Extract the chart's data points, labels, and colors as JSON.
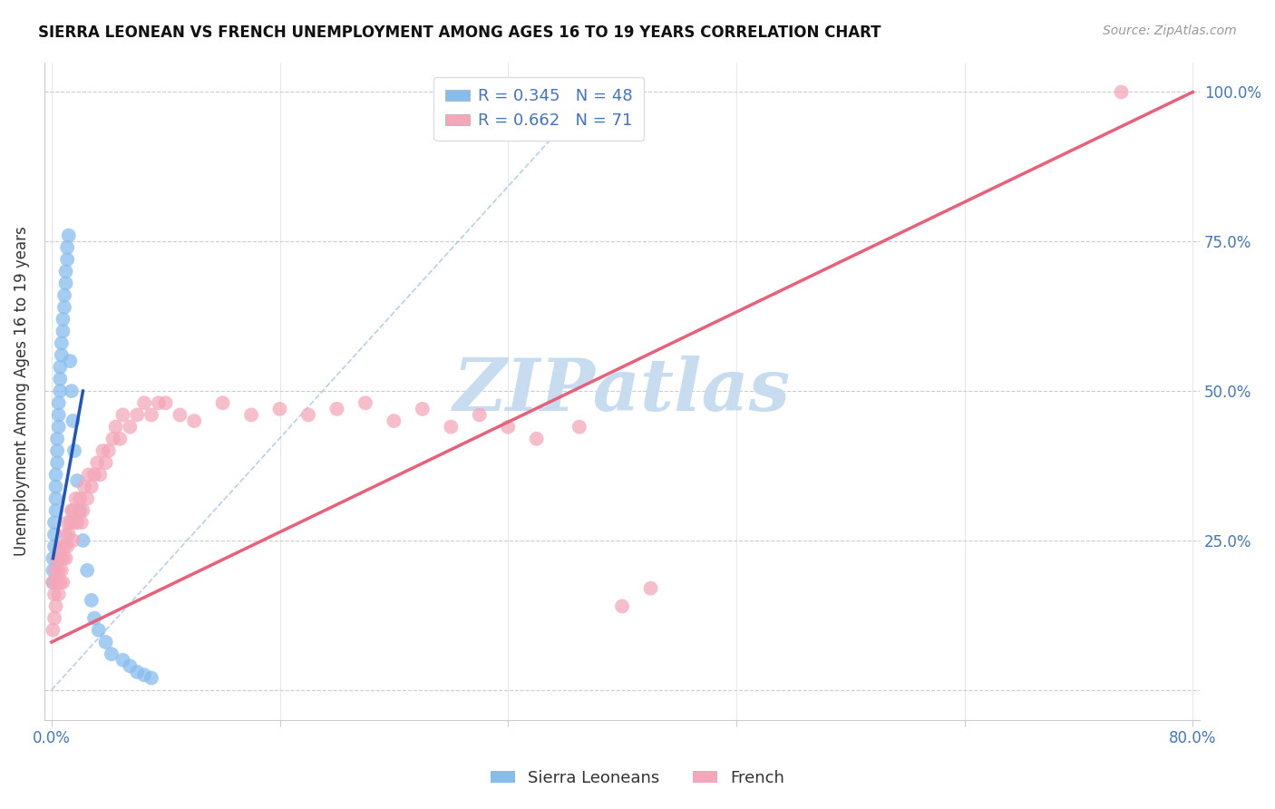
{
  "title": "SIERRA LEONEAN VS FRENCH UNEMPLOYMENT AMONG AGES 16 TO 19 YEARS CORRELATION CHART",
  "source": "Source: ZipAtlas.com",
  "ylabel": "Unemployment Among Ages 16 to 19 years",
  "sierra_R": 0.345,
  "sierra_N": 48,
  "french_R": 0.662,
  "french_N": 71,
  "legend_labels": [
    "Sierra Leoneans",
    "French"
  ],
  "scatter_color_sierra": "#87BDED",
  "scatter_color_french": "#F4A7B9",
  "line_color_sierra": "#2255BB",
  "line_color_french": "#E8607A",
  "dashed_line_color": "#99BBDD",
  "watermark": "ZIPatlas",
  "watermark_color": "#C8DCF0",
  "background_color": "#FFFFFF",
  "xmin": 0.0,
  "xmax": 0.8,
  "ymin": -0.05,
  "ymax": 1.05,
  "sierra_x": [
    0.001,
    0.001,
    0.001,
    0.002,
    0.002,
    0.002,
    0.003,
    0.003,
    0.003,
    0.003,
    0.004,
    0.004,
    0.004,
    0.005,
    0.005,
    0.005,
    0.006,
    0.006,
    0.006,
    0.007,
    0.007,
    0.008,
    0.008,
    0.009,
    0.009,
    0.01,
    0.01,
    0.011,
    0.011,
    0.012,
    0.013,
    0.014,
    0.015,
    0.016,
    0.018,
    0.02,
    0.022,
    0.025,
    0.028,
    0.03,
    0.033,
    0.038,
    0.042,
    0.05,
    0.055,
    0.06,
    0.065,
    0.07
  ],
  "sierra_y": [
    0.18,
    0.2,
    0.22,
    0.24,
    0.26,
    0.28,
    0.3,
    0.32,
    0.34,
    0.36,
    0.38,
    0.4,
    0.42,
    0.44,
    0.46,
    0.48,
    0.5,
    0.52,
    0.54,
    0.56,
    0.58,
    0.6,
    0.62,
    0.64,
    0.66,
    0.68,
    0.7,
    0.72,
    0.74,
    0.76,
    0.55,
    0.5,
    0.45,
    0.4,
    0.35,
    0.3,
    0.25,
    0.2,
    0.15,
    0.12,
    0.1,
    0.08,
    0.06,
    0.05,
    0.04,
    0.03,
    0.025,
    0.02
  ],
  "french_x": [
    0.001,
    0.001,
    0.002,
    0.002,
    0.003,
    0.003,
    0.004,
    0.004,
    0.005,
    0.005,
    0.006,
    0.006,
    0.007,
    0.007,
    0.008,
    0.008,
    0.009,
    0.01,
    0.01,
    0.011,
    0.011,
    0.012,
    0.013,
    0.014,
    0.015,
    0.015,
    0.016,
    0.017,
    0.018,
    0.019,
    0.02,
    0.021,
    0.022,
    0.023,
    0.025,
    0.026,
    0.028,
    0.03,
    0.032,
    0.034,
    0.036,
    0.038,
    0.04,
    0.043,
    0.045,
    0.048,
    0.05,
    0.055,
    0.06,
    0.065,
    0.07,
    0.075,
    0.08,
    0.09,
    0.1,
    0.12,
    0.14,
    0.16,
    0.18,
    0.2,
    0.22,
    0.24,
    0.26,
    0.28,
    0.3,
    0.32,
    0.34,
    0.37,
    0.4,
    0.42,
    0.75
  ],
  "french_y": [
    0.18,
    0.1,
    0.16,
    0.12,
    0.2,
    0.14,
    0.18,
    0.22,
    0.2,
    0.16,
    0.22,
    0.18,
    0.24,
    0.2,
    0.22,
    0.18,
    0.24,
    0.26,
    0.22,
    0.28,
    0.24,
    0.26,
    0.28,
    0.3,
    0.25,
    0.3,
    0.28,
    0.32,
    0.28,
    0.3,
    0.32,
    0.28,
    0.3,
    0.34,
    0.32,
    0.36,
    0.34,
    0.36,
    0.38,
    0.36,
    0.4,
    0.38,
    0.4,
    0.42,
    0.44,
    0.42,
    0.46,
    0.44,
    0.46,
    0.48,
    0.46,
    0.48,
    0.48,
    0.46,
    0.45,
    0.48,
    0.46,
    0.47,
    0.46,
    0.47,
    0.48,
    0.45,
    0.47,
    0.44,
    0.46,
    0.44,
    0.42,
    0.44,
    0.14,
    0.17,
    1.0
  ],
  "fr_line_x0": 0.0,
  "fr_line_y0": 0.08,
  "fr_line_x1": 0.8,
  "fr_line_y1": 1.0,
  "sl_line_x0": 0.001,
  "sl_line_y0": 0.22,
  "sl_line_x1": 0.022,
  "sl_line_y1": 0.5,
  "dash_line_x0": 0.0,
  "dash_line_y0": 0.0,
  "dash_line_x1": 0.38,
  "dash_line_y1": 1.0
}
